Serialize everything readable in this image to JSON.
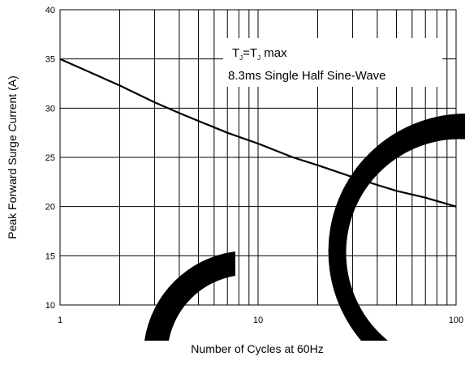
{
  "chart_data": {
    "type": "line",
    "title": "",
    "xlabel": "Number of Cycles at 60Hz",
    "ylabel": "Peak Forward Surge Current (A)",
    "xscale": "log",
    "xlim": [
      1,
      100
    ],
    "ylim": [
      10,
      40
    ],
    "x_ticks": [
      1,
      10,
      100
    ],
    "x_tick_labels": [
      "1",
      "10",
      "100"
    ],
    "y_ticks": [
      10,
      15,
      20,
      25,
      30,
      35,
      40
    ],
    "y_tick_labels": [
      "10",
      "15",
      "20",
      "25",
      "30",
      "35",
      "40"
    ],
    "grid": true,
    "legend": "none",
    "annotations": {
      "line1_main": "T",
      "line1_sub1": "J",
      "line1_mid": "=T",
      "line1_sub2": "J",
      "line1_tail": " max",
      "line2": "8.3ms Single Half Sine-Wave"
    },
    "series": [
      {
        "x": [
          1,
          2,
          3,
          4,
          5,
          7,
          10,
          15,
          20,
          30,
          40,
          50,
          70,
          100
        ],
        "y": [
          35.0,
          32.3,
          30.6,
          29.5,
          28.7,
          27.5,
          26.4,
          25.0,
          24.2,
          23.0,
          22.2,
          21.6,
          20.9,
          20.0
        ]
      }
    ],
    "colors": {
      "line": "#000000",
      "grid": "#000000",
      "background": "#ffffff",
      "decoration": "#000000"
    }
  }
}
